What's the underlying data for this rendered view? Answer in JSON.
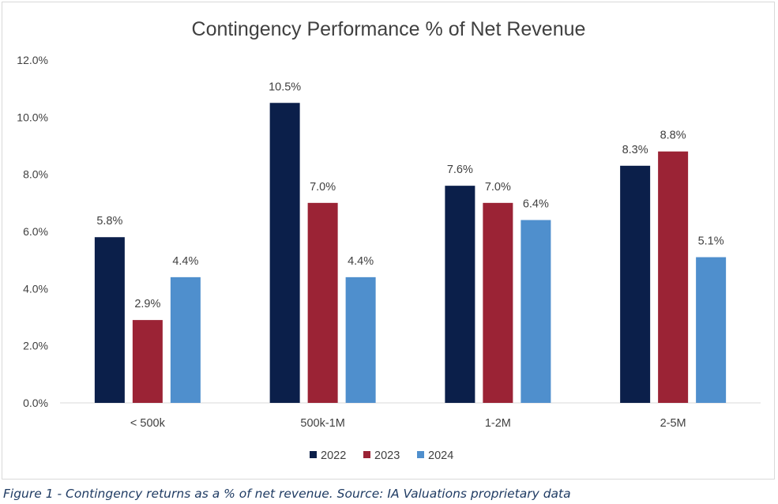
{
  "caption": "Figure 1 - Contingency  returns as a % of net revenue. Source: IA Valuations  proprietary data",
  "chart_data": {
    "type": "bar",
    "title": "Contingency Performance % of Net Revenue",
    "xlabel": "",
    "ylabel": "",
    "categories": [
      "< 500k",
      "500k-1M",
      "1-2M",
      "2-5M"
    ],
    "series": [
      {
        "name": "2022",
        "color": "#0b1f4a",
        "values": [
          5.8,
          10.5,
          7.6,
          8.3
        ],
        "labels": [
          "5.8%",
          "10.5%",
          "7.6%",
          "8.3%"
        ]
      },
      {
        "name": "2023",
        "color": "#9b2335",
        "values": [
          2.9,
          7.0,
          7.0,
          8.8
        ],
        "labels": [
          "2.9%",
          "7.0%",
          "7.0%",
          "8.8%"
        ]
      },
      {
        "name": "2024",
        "color": "#4f8fcd",
        "values": [
          4.4,
          4.4,
          6.4,
          5.1
        ],
        "labels": [
          "4.4%",
          "4.4%",
          "6.4%",
          "5.1%"
        ]
      }
    ],
    "ylim": [
      0,
      12
    ],
    "yticks": [
      "0.0%",
      "2.0%",
      "4.0%",
      "6.0%",
      "8.0%",
      "10.0%",
      "12.0%"
    ],
    "grid": false,
    "legend_position": "bottom"
  }
}
